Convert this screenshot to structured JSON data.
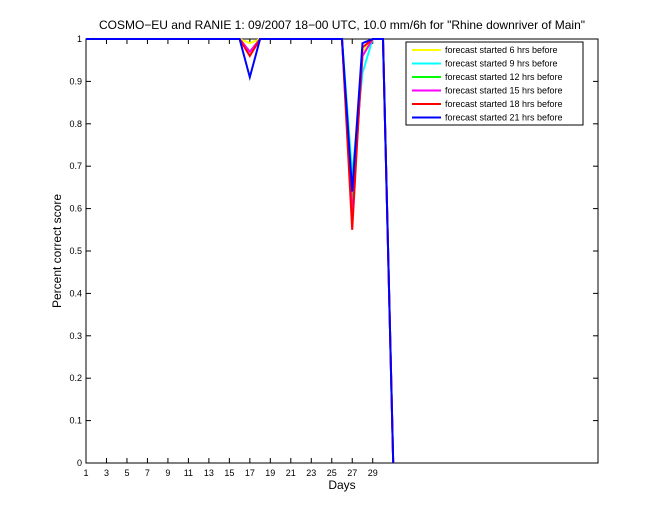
{
  "chart_data": {
    "type": "line",
    "title": "COSMO−EU and RANIE 1: 09/2007 18−00 UTC, 10.0 mm/6h for \"Rhine downriver of Main\"",
    "xlabel": "Days",
    "ylabel": "Percent correct score",
    "xlim": [
      1,
      51
    ],
    "ylim": [
      0,
      1
    ],
    "x_ticks": [
      1,
      3,
      5,
      7,
      9,
      11,
      13,
      15,
      17,
      19,
      21,
      23,
      25,
      27,
      29
    ],
    "y_ticks": [
      0,
      0.1,
      0.2,
      0.3,
      0.4,
      0.5,
      0.6,
      0.7,
      0.8,
      0.9,
      1
    ],
    "y_tick_labels": [
      "0",
      "0.1",
      "0.2",
      "0.3",
      "0.4",
      "0.5",
      "0.6",
      "0.7",
      "0.8",
      "0.9",
      "1"
    ],
    "grid": false,
    "legend_position": "top-right",
    "series": [
      {
        "name": "forecast started 6 hrs before",
        "color": "#ffff00",
        "points": [
          [
            1,
            1
          ],
          [
            16,
            1
          ],
          [
            17,
            0.99
          ],
          [
            18,
            1
          ],
          [
            26,
            1
          ],
          [
            27,
            0.67
          ],
          [
            28,
            0.97
          ],
          [
            29,
            1
          ],
          [
            30,
            1
          ],
          [
            31,
            0
          ]
        ]
      },
      {
        "name": "forecast started 9 hrs before",
        "color": "#00ffff",
        "points": [
          [
            1,
            1
          ],
          [
            16,
            1
          ],
          [
            17,
            0.97
          ],
          [
            18,
            1
          ],
          [
            26,
            1
          ],
          [
            27,
            0.68
          ],
          [
            28,
            0.92
          ],
          [
            29,
            1
          ],
          [
            30,
            1
          ],
          [
            31,
            0
          ]
        ]
      },
      {
        "name": "forecast started 12 hrs before",
        "color": "#00ff00",
        "points": [
          [
            1,
            1
          ],
          [
            16,
            1
          ],
          [
            17,
            0.97
          ],
          [
            18,
            1
          ],
          [
            26,
            1
          ],
          [
            27,
            0.6
          ],
          [
            28,
            0.96
          ],
          [
            29,
            1
          ],
          [
            30,
            1
          ],
          [
            31,
            0
          ]
        ]
      },
      {
        "name": "forecast started 15 hrs before",
        "color": "#ff00ff",
        "points": [
          [
            1,
            1
          ],
          [
            16,
            1
          ],
          [
            17,
            0.97
          ],
          [
            18,
            1
          ],
          [
            26,
            1
          ],
          [
            27,
            0.58
          ],
          [
            28,
            0.96
          ],
          [
            29,
            1
          ],
          [
            30,
            1
          ],
          [
            31,
            0
          ]
        ]
      },
      {
        "name": "forecast started 18 hrs before",
        "color": "#ff0000",
        "points": [
          [
            1,
            1
          ],
          [
            16,
            1
          ],
          [
            17,
            0.96
          ],
          [
            18,
            1
          ],
          [
            26,
            1
          ],
          [
            27,
            0.55
          ],
          [
            28,
            0.98
          ],
          [
            29,
            1
          ],
          [
            30,
            1
          ],
          [
            31,
            0
          ]
        ]
      },
      {
        "name": "forecast started 21 hrs before",
        "color": "#0000ff",
        "points": [
          [
            1,
            1
          ],
          [
            16,
            1
          ],
          [
            17,
            0.91
          ],
          [
            18,
            1
          ],
          [
            26,
            1
          ],
          [
            27,
            0.64
          ],
          [
            28,
            0.99
          ],
          [
            29,
            1
          ],
          [
            30,
            1
          ],
          [
            31,
            0
          ]
        ]
      }
    ]
  }
}
